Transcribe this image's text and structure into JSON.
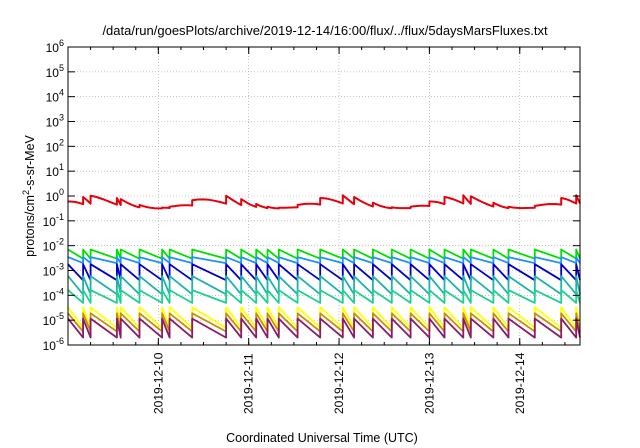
{
  "chart_data": {
    "type": "line",
    "title": "/data/run/goesPlots/archive/2019-12-14/16:00/flux/../flux/5daysMarsFluxes.txt",
    "xlabel": "Coordinated Universal Time (UTC)",
    "ylabel_base": "protons/cm",
    "ylabel_sup": "2",
    "ylabel_rest": "-s-sr-MeV",
    "y_scale": "log",
    "ylim": [
      1e-06,
      1000000.0
    ],
    "xlim": [
      "2019-12-09T00:00",
      "2019-12-14T16:00"
    ],
    "grid": true,
    "legend": "none",
    "x_ticks": [
      "2019-12-10",
      "2019-12-11",
      "2019-12-12",
      "2019-12-13",
      "2019-12-14"
    ],
    "y_ticks": [
      {
        "base": "10",
        "exp": "-6"
      },
      {
        "base": "10",
        "exp": "-5"
      },
      {
        "base": "10",
        "exp": "-4"
      },
      {
        "base": "10",
        "exp": "-3"
      },
      {
        "base": "10",
        "exp": "-2"
      },
      {
        "base": "10",
        "exp": "-1"
      },
      {
        "base": "10",
        "exp": "0"
      },
      {
        "base": "10",
        "exp": "1"
      },
      {
        "base": "10",
        "exp": "2"
      },
      {
        "base": "10",
        "exp": "3"
      },
      {
        "base": "10",
        "exp": "4"
      },
      {
        "base": "10",
        "exp": "5"
      },
      {
        "base": "10",
        "exp": "6"
      }
    ],
    "sawtooth_times": [
      "2019-12-09T04:00",
      "2019-12-09T06:00",
      "2019-12-09T13:00",
      "2019-12-09T14:00",
      "2019-12-09T19:00",
      "2019-12-10T01:00",
      "2019-12-10T03:00",
      "2019-12-10T09:00",
      "2019-12-10T18:00",
      "2019-12-10T22:00",
      "2019-12-11T02:00",
      "2019-12-11T05:00",
      "2019-12-11T08:00",
      "2019-12-11T13:00",
      "2019-12-11T19:00",
      "2019-12-12T01:00",
      "2019-12-12T04:00",
      "2019-12-12T09:00",
      "2019-12-12T14:00",
      "2019-12-12T19:00",
      "2019-12-13T00:00",
      "2019-12-13T04:00",
      "2019-12-13T09:00",
      "2019-12-13T11:00",
      "2019-12-13T17:00",
      "2019-12-13T21:00",
      "2019-12-14T04:00",
      "2019-12-14T11:00",
      "2019-12-14T15:00"
    ],
    "series": [
      {
        "color": "#e8000b",
        "base": 0.3,
        "amp": 3.2,
        "kind": "smooth"
      },
      {
        "color": "#00e000",
        "base": 0.003,
        "amp": 2.6,
        "kind": "saw"
      },
      {
        "color": "#1e90ff",
        "base": 0.0018,
        "amp": 2.4,
        "kind": "saw"
      },
      {
        "color": "#0000cd",
        "base": 0.00045,
        "amp": 4.0,
        "kind": "saw"
      },
      {
        "color": "#20b2aa",
        "base": 0.00011,
        "amp": 6.0,
        "kind": "saw"
      },
      {
        "color": "#20d090",
        "base": 4.5e-05,
        "amp": 4.5,
        "kind": "saw"
      },
      {
        "color": "#ffff00",
        "base": 5.5e-06,
        "amp": 6.0,
        "kind": "saw"
      },
      {
        "color": "#c89000",
        "base": 3.5e-06,
        "amp": 6.0,
        "kind": "saw"
      },
      {
        "color": "#8b1a6b",
        "base": 1.8e-06,
        "amp": 8.0,
        "kind": "saw"
      }
    ]
  }
}
